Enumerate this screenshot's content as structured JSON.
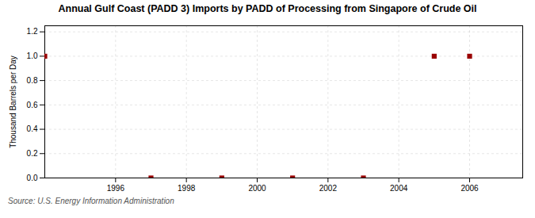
{
  "chart_data": {
    "type": "scatter",
    "title": "Annual Gulf Coast (PADD 3) Imports by PADD of Processing from Singapore of Crude Oil",
    "ylabel": "Thousand Barrels per Day",
    "source": "Source: U.S. Energy Information Administration",
    "x": [
      1994,
      1997,
      1999,
      2001,
      2003,
      2005,
      2006
    ],
    "values": [
      1.0,
      0.0,
      0.0,
      0.0,
      0.0,
      1.0,
      1.0
    ],
    "color": "#990000",
    "marker": "square",
    "xlim": [
      1994.0,
      2007.5
    ],
    "xticks": [
      1996,
      1998,
      2000,
      2002,
      2004,
      2006
    ],
    "ylim": [
      0.0,
      1.25
    ],
    "yticks": [
      {
        "value": 0.0,
        "label": "0.0"
      },
      0.2,
      0.4,
      0.6,
      0.8,
      {
        "value": 1.0,
        "label": "1.0"
      },
      1.2
    ],
    "grid": true
  }
}
